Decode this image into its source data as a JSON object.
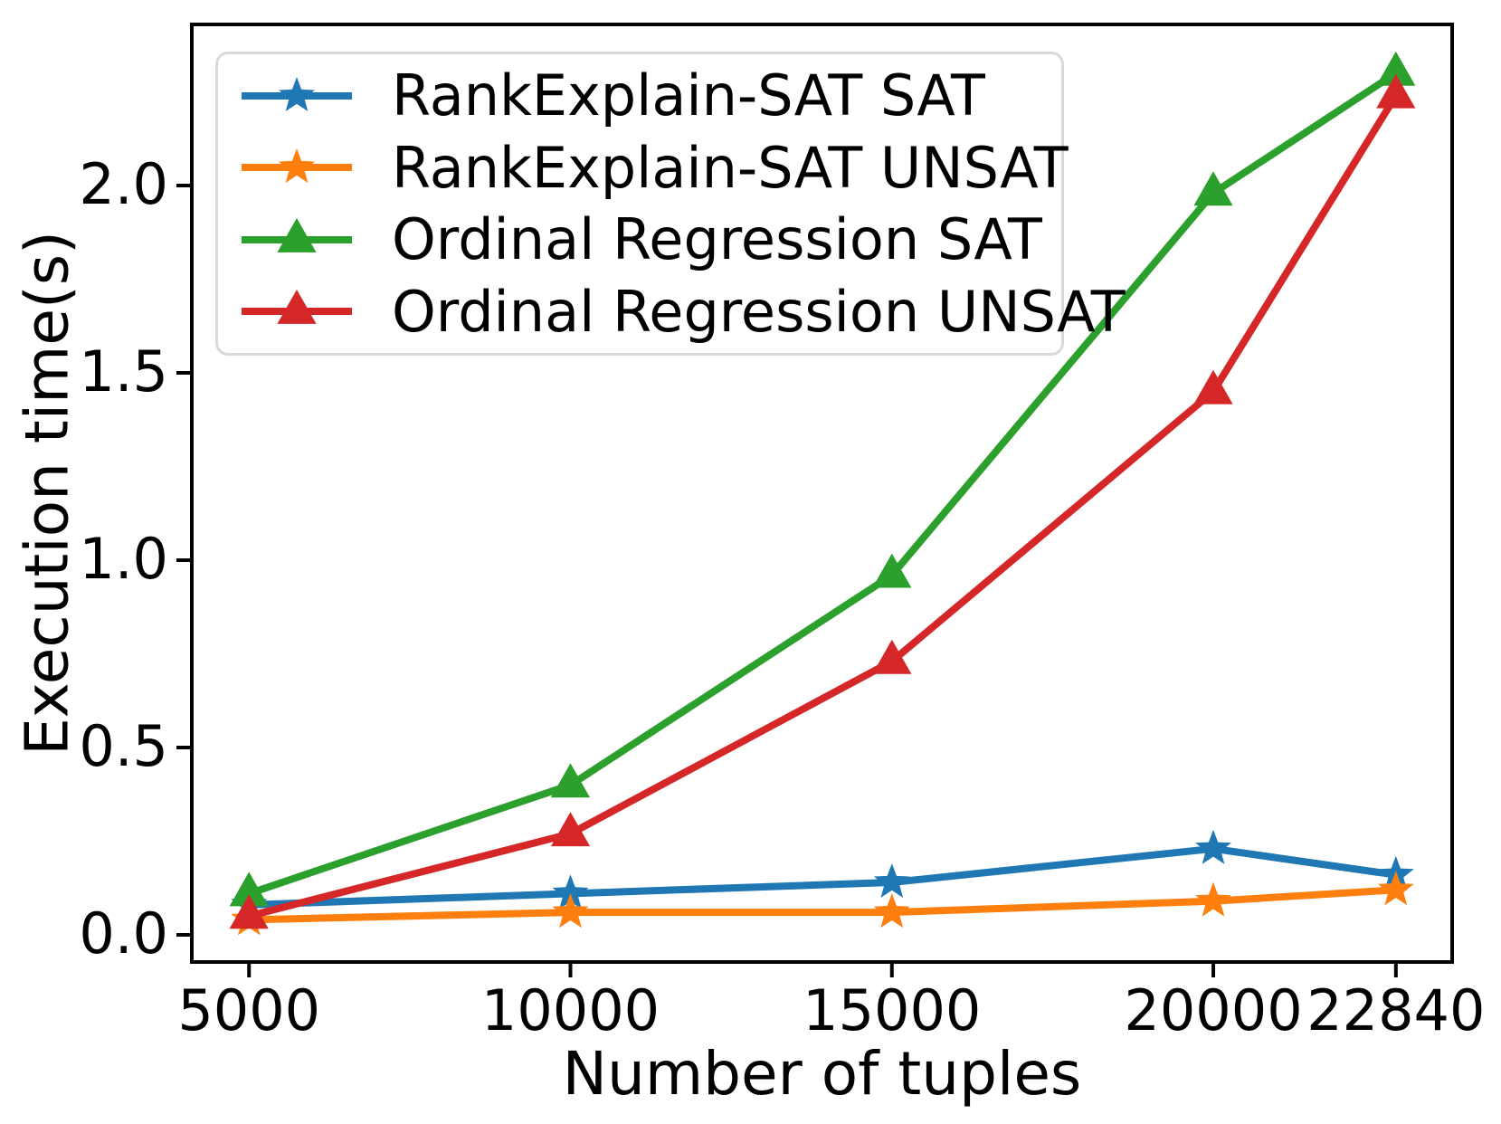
{
  "figure": {
    "background_color": "#ffffff",
    "text_color": "#000000",
    "axis_color": "#000000"
  },
  "chart_data": {
    "type": "line",
    "title": "",
    "xlabel": "Number of tuples",
    "ylabel": "Execution time(s)",
    "x": [
      5000,
      10000,
      15000,
      20000,
      22840
    ],
    "xtick_labels": [
      "5000",
      "10000",
      "15000",
      "20000",
      "22840"
    ],
    "ytick_values": [
      0.0,
      0.5,
      1.0,
      1.5,
      2.0
    ],
    "ytick_labels": [
      "0.0",
      "0.5",
      "1.0",
      "1.5",
      "2.0"
    ],
    "xlim": [
      4110,
      23715
    ],
    "ylim": [
      -0.0725,
      2.43
    ],
    "grid": false,
    "legend_position": "upper left",
    "series": [
      {
        "name": "RankExplain-SAT SAT",
        "color": "#1f77b4",
        "marker": "star",
        "values": [
          0.08,
          0.11,
          0.14,
          0.23,
          0.16
        ]
      },
      {
        "name": "RankExplain-SAT UNSAT",
        "color": "#ff7f0e",
        "marker": "star",
        "values": [
          0.04,
          0.06,
          0.06,
          0.09,
          0.12
        ]
      },
      {
        "name": "Ordinal Regression SAT",
        "color": "#2ca02c",
        "marker": "triangle",
        "values": [
          0.11,
          0.4,
          0.96,
          1.98,
          2.3
        ]
      },
      {
        "name": "Ordinal Regression UNSAT",
        "color": "#d62728",
        "marker": "triangle",
        "values": [
          0.05,
          0.27,
          0.73,
          1.45,
          2.24
        ]
      }
    ]
  }
}
